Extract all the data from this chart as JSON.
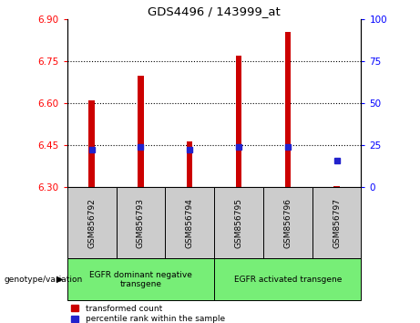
{
  "title": "GDS4496 / 143999_at",
  "samples": [
    "GSM856792",
    "GSM856793",
    "GSM856794",
    "GSM856795",
    "GSM856796",
    "GSM856797"
  ],
  "bar_bottoms": [
    6.3,
    6.3,
    6.3,
    6.3,
    6.3,
    6.3
  ],
  "bar_tops": [
    6.61,
    6.7,
    6.465,
    6.77,
    6.855,
    6.305
  ],
  "percentile_values": [
    6.435,
    6.444,
    6.434,
    6.444,
    6.444,
    6.395
  ],
  "ylim_left": [
    6.3,
    6.9
  ],
  "ylim_right": [
    0,
    100
  ],
  "yticks_left": [
    6.3,
    6.45,
    6.6,
    6.75,
    6.9
  ],
  "yticks_right": [
    0,
    25,
    50,
    75,
    100
  ],
  "grid_values": [
    6.45,
    6.6,
    6.75
  ],
  "bar_color": "#cc0000",
  "percentile_color": "#2222cc",
  "group1_label": "EGFR dominant negative\ntransgene",
  "group2_label": "EGFR activated transgene",
  "group_box_color": "#77ee77",
  "sample_box_color": "#cccccc",
  "legend_red_label": "transformed count",
  "legend_blue_label": "percentile rank within the sample",
  "genotype_label": "genotype/variation",
  "bar_width": 0.12
}
